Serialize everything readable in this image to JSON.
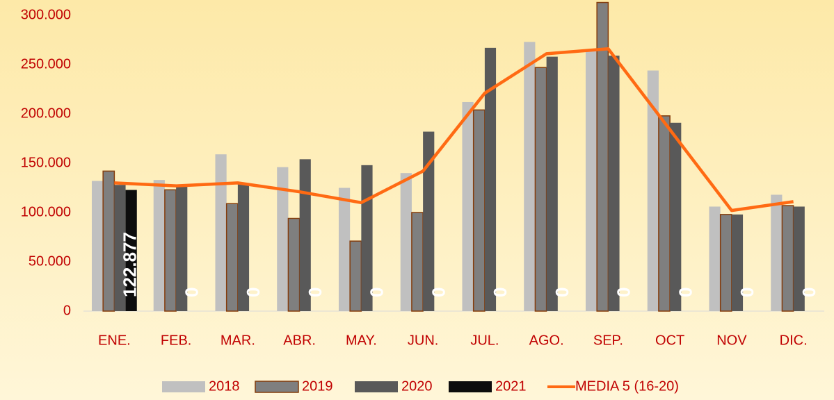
{
  "chart_data": {
    "type": "bar",
    "categories": [
      "ENE.",
      "FEB.",
      "MAR.",
      "ABR.",
      "MAY.",
      "JUN.",
      "JUL.",
      "AGO.",
      "SEP.",
      "OCT",
      "NOV",
      "DIC."
    ],
    "series": [
      {
        "name": "2018",
        "color": "#c0c0c0",
        "values": [
          132000,
          133000,
          159000,
          146000,
          125000,
          140000,
          212000,
          273000,
          265000,
          244000,
          106000,
          118000
        ]
      },
      {
        "name": "2019",
        "color": "#7f7f7f",
        "stroke": "#843c0c",
        "values": [
          142000,
          123000,
          109000,
          94000,
          71000,
          100000,
          204000,
          247000,
          313000,
          198000,
          98000,
          107000
        ]
      },
      {
        "name": "2020",
        "color": "#595959",
        "values": [
          128000,
          127000,
          129000,
          154000,
          148000,
          182000,
          267000,
          258000,
          259000,
          191000,
          98000,
          106000
        ]
      },
      {
        "name": "2021",
        "color": "#0d0d0d",
        "values": [
          122877,
          0,
          0,
          0,
          0,
          0,
          0,
          0,
          0,
          0,
          0,
          0
        ],
        "value_labels": [
          "122.877",
          "0",
          "0",
          "0",
          "0",
          "0",
          "0",
          "0",
          "0",
          "0",
          "0",
          "0"
        ]
      },
      {
        "name": "MEDIA 5 (16-20)",
        "type": "line",
        "color": "#ff6a13",
        "values": [
          130000,
          127000,
          130000,
          121000,
          110000,
          142000,
          221000,
          261000,
          266000,
          184000,
          102000,
          111000
        ]
      }
    ],
    "ylim": [
      0,
      300000
    ],
    "yticks": [
      0,
      {
        "value": 50000,
        "label": "50.000"
      },
      {
        "value": 100000,
        "label": "100.000"
      },
      {
        "value": 150000,
        "label": "150.000"
      },
      {
        "value": 200000,
        "label": "200.000"
      },
      {
        "value": 250000,
        "label": "250.000"
      },
      {
        "value": 300000,
        "label": "300.000"
      }
    ],
    "grid": false,
    "legend": "bottom"
  }
}
